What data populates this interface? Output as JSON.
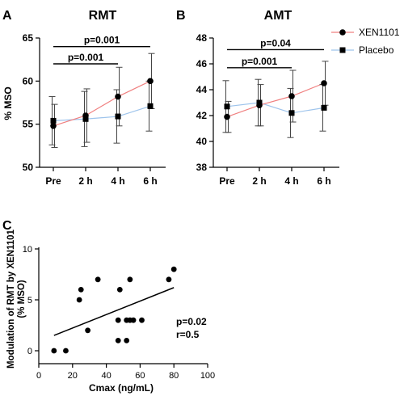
{
  "colors": {
    "xen": "#f08080",
    "placebo": "#9ec4ec",
    "axis": "#000000"
  },
  "legend": {
    "items": [
      "XEN1101",
      "Placebo"
    ],
    "markers": [
      "circle",
      "square"
    ]
  },
  "chart_data": [
    {
      "panel": "A",
      "type": "line",
      "title": "RMT",
      "ylabel": "% MSO",
      "xlabel": "",
      "categories": [
        "Pre",
        "2 h",
        "4 h",
        "6 h"
      ],
      "ylim": [
        50,
        65
      ],
      "yticks": [
        50,
        55,
        60,
        65
      ],
      "series": [
        {
          "name": "XEN1101",
          "marker": "circle",
          "values": [
            54.8,
            56.0,
            58.2,
            60.0
          ],
          "errors": [
            2.5,
            3.1,
            3.4,
            3.2
          ]
        },
        {
          "name": "Placebo",
          "marker": "square",
          "values": [
            55.4,
            55.6,
            55.9,
            57.1
          ],
          "errors": [
            2.8,
            3.2,
            3.1,
            2.9
          ]
        }
      ],
      "significance": [
        {
          "label": "p=0.001",
          "from": "Pre",
          "to": "6 h",
          "level": 64.0
        },
        {
          "label": "p=0.001",
          "from": "Pre",
          "to": "4 h",
          "level": 62.0
        }
      ]
    },
    {
      "panel": "B",
      "type": "line",
      "title": "AMT",
      "ylabel": "",
      "xlabel": "",
      "categories": [
        "Pre",
        "2 h",
        "4 h",
        "6 h"
      ],
      "ylim": [
        38,
        48
      ],
      "yticks": [
        38,
        40,
        42,
        44,
        46,
        48
      ],
      "series": [
        {
          "name": "XEN1101",
          "marker": "circle",
          "values": [
            41.9,
            42.8,
            43.5,
            44.5
          ],
          "errors": [
            1.2,
            1.6,
            2.0,
            1.7
          ]
        },
        {
          "name": "Placebo",
          "marker": "square",
          "values": [
            42.7,
            43.0,
            42.2,
            42.6
          ],
          "errors": [
            2.0,
            1.8,
            1.9,
            1.8
          ]
        }
      ],
      "significance": [
        {
          "label": "p=0.04",
          "from": "Pre",
          "to": "6 h",
          "level": 47.1
        },
        {
          "label": "p=0.001",
          "from": "Pre",
          "to": "4 h",
          "level": 45.7
        }
      ]
    },
    {
      "panel": "C",
      "type": "scatter",
      "title": "",
      "xlabel": "Cmax (ng/mL)",
      "ylabel": "Modulation of RMT by XEN1101 (% MSO)",
      "ylabel_lines": [
        "Modulation of RMT by XEN1101",
        "(% MSO)"
      ],
      "xlim": [
        0,
        100
      ],
      "xticks": [
        0,
        20,
        40,
        60,
        80,
        100
      ],
      "ylim": [
        0,
        10
      ],
      "yticks": [
        0,
        5,
        10
      ],
      "points": [
        [
          9,
          0
        ],
        [
          16,
          0
        ],
        [
          24,
          5
        ],
        [
          25,
          6
        ],
        [
          29,
          2
        ],
        [
          35,
          7
        ],
        [
          47,
          1
        ],
        [
          47,
          3
        ],
        [
          48,
          6
        ],
        [
          52,
          3
        ],
        [
          52,
          1
        ],
        [
          54,
          3
        ],
        [
          54,
          7
        ],
        [
          56,
          3
        ],
        [
          61,
          3
        ],
        [
          77,
          7
        ],
        [
          80,
          8
        ]
      ],
      "fit_line": [
        [
          9,
          1.5
        ],
        [
          80,
          6.2
        ]
      ],
      "annotations": [
        "p=0.02",
        "r=0.5"
      ]
    }
  ]
}
